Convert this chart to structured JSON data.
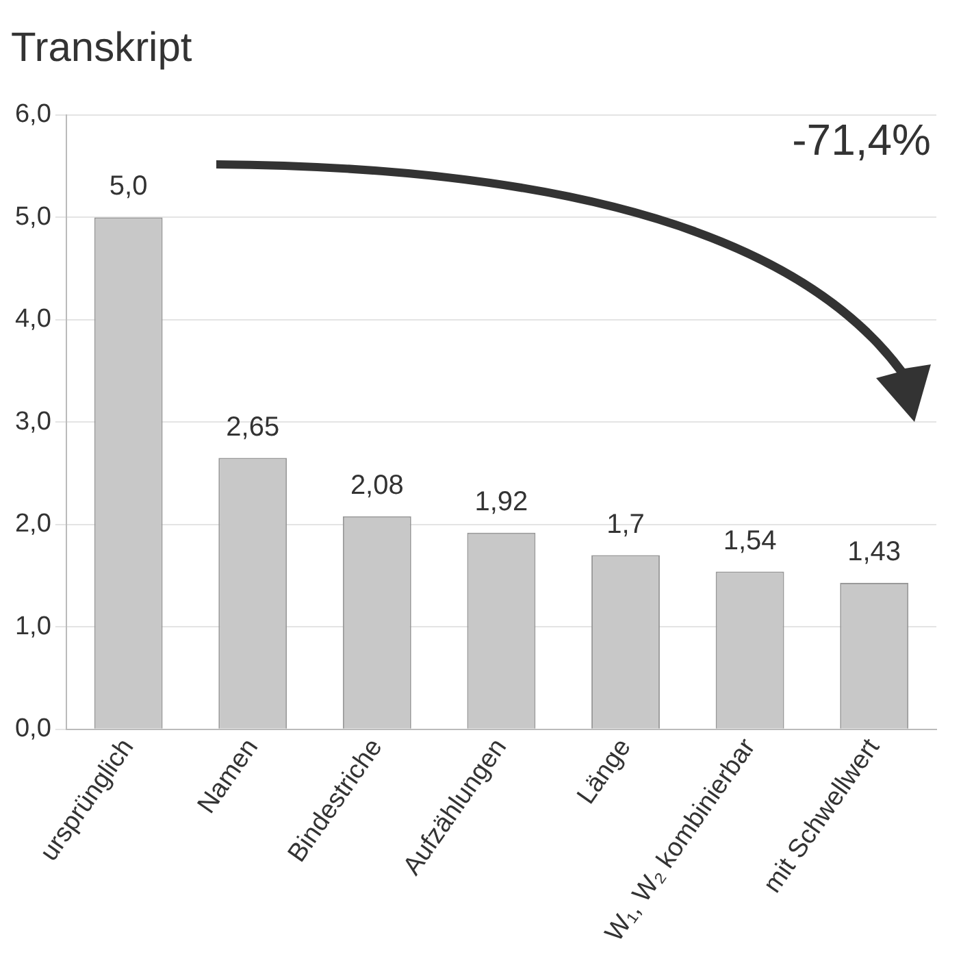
{
  "chart_data": {
    "type": "bar",
    "title": "Transkript",
    "categories": [
      "ursprünglich",
      "Namen",
      "Bindestriche",
      "Aufzählungen",
      "Länge",
      "W₁, W₂ kombinierbar",
      "mit Schwellwert"
    ],
    "values": [
      5.0,
      2.65,
      2.08,
      1.92,
      1.7,
      1.54,
      1.43
    ],
    "value_labels": [
      "5,0",
      "2,65",
      "2,08",
      "1,92",
      "1,7",
      "1,54",
      "1,43"
    ],
    "color": "#c8c8c8",
    "ylim": [
      0,
      6
    ],
    "yticks": [
      {
        "value": 0,
        "label": "0,0"
      },
      {
        "value": 1,
        "label": "1,0"
      },
      {
        "value": 2,
        "label": "2,0"
      },
      {
        "value": 3,
        "label": "3,0"
      },
      {
        "value": 4,
        "label": "4,0"
      },
      {
        "value": 5,
        "label": "5,0"
      },
      {
        "value": 6,
        "label": "6,0"
      }
    ],
    "grid": "y",
    "annotations": [
      "-71,4%"
    ]
  }
}
